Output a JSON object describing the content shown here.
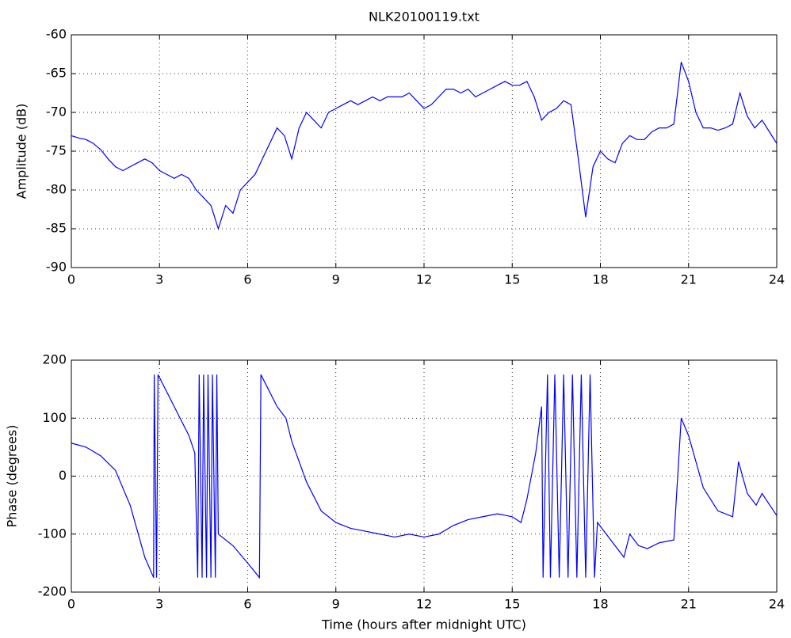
{
  "chart_data": [
    {
      "type": "line",
      "title": "NLK20100119.txt",
      "ylabel": "Amplitude (dB)",
      "color": "#0000ff",
      "x": [
        0,
        0.25,
        0.5,
        0.75,
        1,
        1.25,
        1.5,
        1.75,
        2,
        2.25,
        2.5,
        2.75,
        3,
        3.25,
        3.5,
        3.75,
        4,
        4.25,
        4.5,
        4.75,
        5,
        5.25,
        5.5,
        5.75,
        6,
        6.25,
        6.5,
        6.75,
        7,
        7.25,
        7.5,
        7.75,
        8,
        8.25,
        8.5,
        8.75,
        9,
        9.25,
        9.5,
        9.75,
        10,
        10.25,
        10.5,
        10.75,
        11,
        11.25,
        11.5,
        11.75,
        12,
        12.25,
        12.5,
        12.75,
        13,
        13.25,
        13.5,
        13.75,
        14,
        14.25,
        14.5,
        14.75,
        15,
        15.25,
        15.5,
        15.75,
        16,
        16.25,
        16.5,
        16.75,
        17,
        17.25,
        17.5,
        17.75,
        18,
        18.25,
        18.5,
        18.75,
        19,
        19.25,
        19.5,
        19.75,
        20,
        20.25,
        20.5,
        20.75,
        21,
        21.25,
        21.5,
        21.75,
        22,
        22.25,
        22.5,
        22.75,
        23,
        23.25,
        23.5,
        23.75,
        24
      ],
      "values": [
        -73,
        -73.3,
        -73.5,
        -74,
        -74.8,
        -76,
        -77,
        -77.5,
        -77,
        -76.5,
        -76,
        -76.5,
        -77.5,
        -78,
        -78.5,
        -78,
        -78.5,
        -80,
        -81,
        -82,
        -85,
        -82,
        -83,
        -80,
        -79,
        -78,
        -76,
        -74,
        -72,
        -73,
        -76,
        -72,
        -70,
        -71,
        -72,
        -70,
        -69.5,
        -69,
        -68.5,
        -69,
        -68.5,
        -68,
        -68.5,
        -68,
        -68,
        -68,
        -67.5,
        -68.5,
        -69.5,
        -69,
        -68,
        -67,
        -67,
        -67.5,
        -67,
        -68,
        -67.5,
        -67,
        -66.5,
        -66,
        -66.5,
        -66.5,
        -66,
        -68,
        -71,
        -70,
        -69.5,
        -68.5,
        -69,
        -76,
        -83.5,
        -77,
        -75,
        -76,
        -76.5,
        -74,
        -73,
        -73.5,
        -73.5,
        -72.5,
        -72,
        -72,
        -71.5,
        -63.5,
        -66,
        -70,
        -72,
        -72,
        -72.3,
        -72,
        -71.5,
        -67.5,
        -70.5,
        -72,
        -71,
        -72.5,
        -74
      ],
      "xlim": [
        0,
        24
      ],
      "xticks": [
        0,
        3,
        6,
        9,
        12,
        15,
        18,
        21,
        24
      ],
      "ylim": [
        -90,
        -60
      ],
      "yticks": [
        -90,
        -85,
        -80,
        -75,
        -70,
        -65,
        -60
      ],
      "grid": true
    },
    {
      "type": "line",
      "ylabel": "Phase (degrees)",
      "xlabel": "Time (hours after midnight UTC)",
      "color": "#0000ff",
      "x": [
        0,
        0.5,
        1,
        1.5,
        2,
        2.5,
        2.8,
        2.82,
        2.9,
        2.95,
        3.2,
        3.5,
        4,
        4.2,
        4.3,
        4.35,
        4.45,
        4.5,
        4.6,
        4.65,
        4.75,
        4.8,
        4.9,
        4.95,
        5,
        5.5,
        6,
        6.4,
        6.45,
        7,
        7.3,
        7.5,
        8,
        8.5,
        9,
        9.5,
        10,
        10.5,
        11,
        11.5,
        12,
        12.5,
        13,
        13.5,
        14,
        14.5,
        15,
        15.3,
        15.5,
        15.8,
        16,
        16.05,
        16.2,
        16.3,
        16.45,
        16.6,
        16.75,
        16.9,
        17.05,
        17.2,
        17.35,
        17.5,
        17.65,
        17.8,
        17.9,
        18.2,
        18.5,
        18.8,
        19,
        19.3,
        19.6,
        20,
        20.5,
        20.75,
        21,
        21.5,
        22,
        22.5,
        22.7,
        23,
        23.3,
        23.5,
        24
      ],
      "values": [
        57,
        50,
        35,
        10,
        -50,
        -140,
        -175,
        175,
        -175,
        175,
        150,
        120,
        70,
        40,
        -175,
        175,
        -175,
        175,
        -175,
        175,
        -175,
        175,
        -175,
        175,
        -100,
        -120,
        -150,
        -175,
        175,
        120,
        100,
        60,
        -10,
        -60,
        -80,
        -90,
        -95,
        -100,
        -105,
        -100,
        -105,
        -100,
        -85,
        -75,
        -70,
        -65,
        -70,
        -80,
        -40,
        40,
        120,
        -175,
        175,
        -175,
        175,
        -175,
        175,
        -175,
        175,
        -175,
        175,
        -175,
        175,
        -175,
        -80,
        -100,
        -120,
        -140,
        -100,
        -120,
        -125,
        -115,
        -110,
        100,
        70,
        -20,
        -60,
        -70,
        25,
        -30,
        -50,
        -30,
        -68
      ],
      "xlim": [
        0,
        24
      ],
      "xticks": [
        0,
        3,
        6,
        9,
        12,
        15,
        18,
        21,
        24
      ],
      "ylim": [
        -200,
        200
      ],
      "yticks": [
        -200,
        -100,
        0,
        100,
        200
      ],
      "grid": true
    }
  ]
}
